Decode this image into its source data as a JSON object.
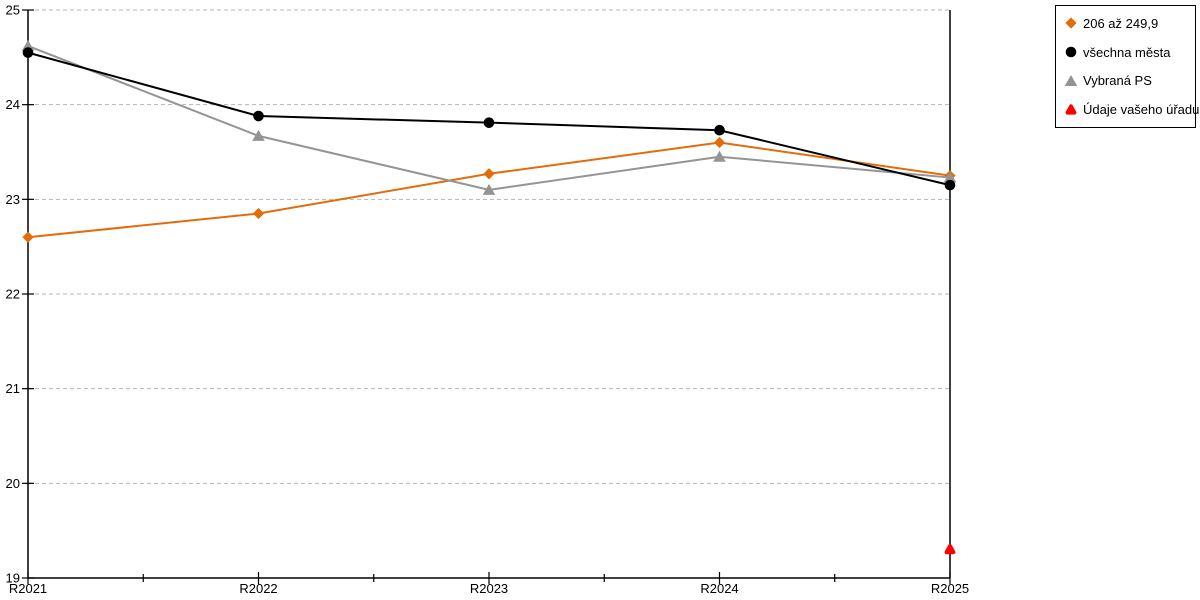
{
  "chart_data": {
    "type": "line",
    "title": "",
    "xlabel": "",
    "ylabel": "",
    "categories": [
      "R2021",
      "R2022",
      "R2023",
      "R2024",
      "R2025"
    ],
    "series": [
      {
        "name": "206 až 249,9",
        "marker": "diamond",
        "color": "#e36c0a",
        "values": [
          22.6,
          22.85,
          23.27,
          23.6,
          23.25
        ]
      },
      {
        "name": "všechna města",
        "marker": "circle",
        "color": "#000000",
        "values": [
          24.55,
          23.88,
          23.81,
          23.73,
          23.15
        ]
      },
      {
        "name": "Vybraná PS",
        "marker": "triangle",
        "color": "#949494",
        "values": [
          24.62,
          23.67,
          23.1,
          23.45,
          23.23
        ]
      },
      {
        "name": "Údaje vašeho úřadu",
        "marker": "rounded-triangle",
        "color": "#ff0000",
        "values": [
          null,
          null,
          null,
          null,
          19.3
        ]
      }
    ],
    "ylim": [
      19,
      25
    ],
    "y_ticks": [
      19,
      20,
      21,
      22,
      23,
      24,
      25
    ],
    "x_minor_ticks": "midpoints-between-categories",
    "grid": {
      "horizontal": true,
      "style": "dashed",
      "color": "#b5b5b5"
    },
    "axis_color": "#000000",
    "legend_position": "top-right"
  }
}
